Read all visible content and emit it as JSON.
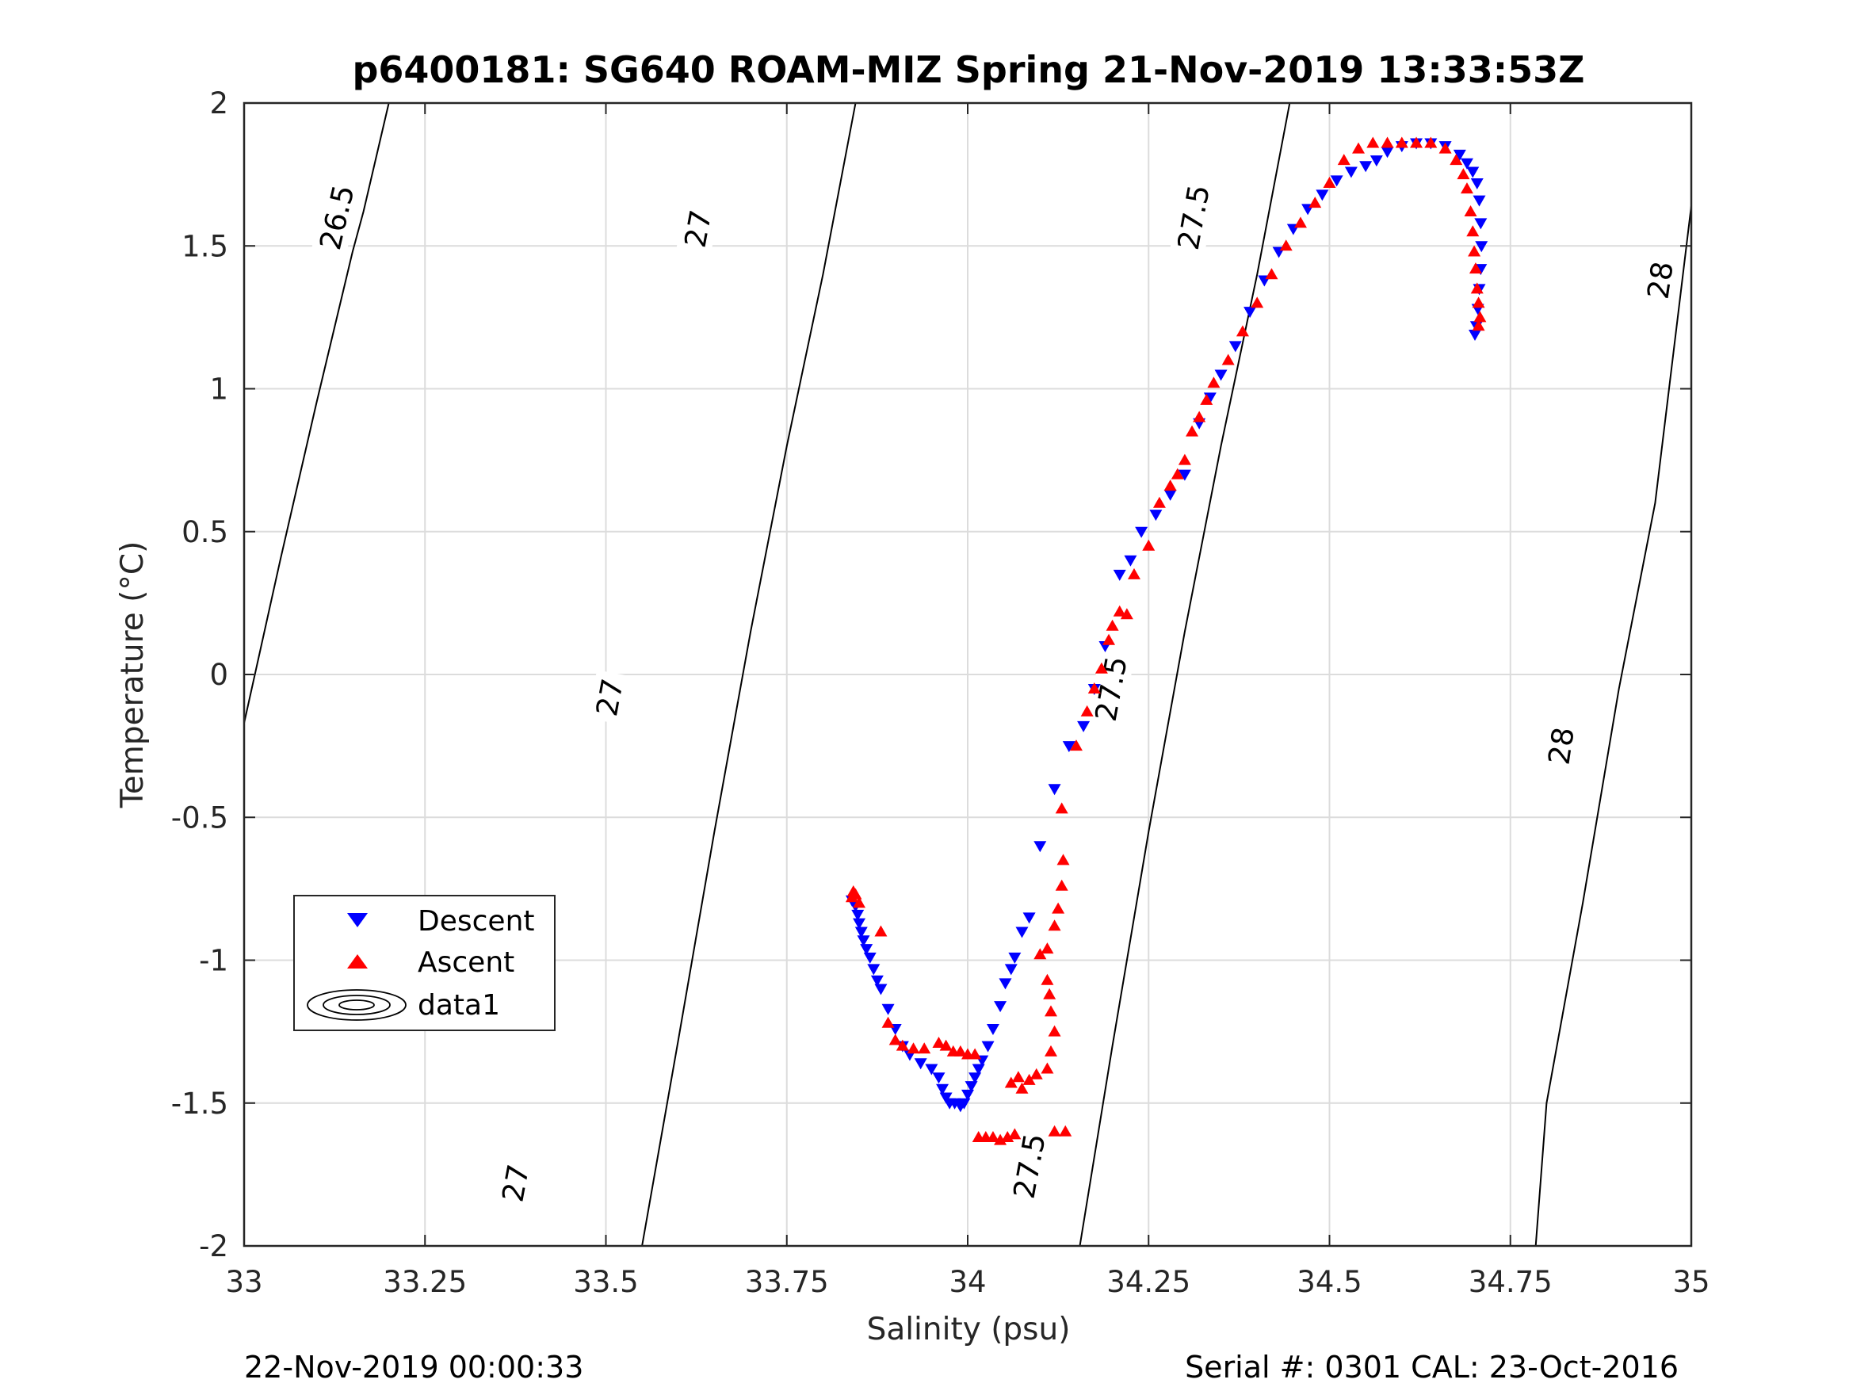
{
  "chart_data": {
    "type": "scatter",
    "title": "p6400181: SG640 ROAM-MIZ Spring 21-Nov-2019 13:33:53Z",
    "xlabel": "Salinity (psu)",
    "ylabel": "Temperature (°C)",
    "xlim": [
      33,
      35
    ],
    "ylim": [
      -2,
      2
    ],
    "xticks": [
      33,
      33.25,
      33.5,
      33.75,
      34,
      34.25,
      34.5,
      34.75,
      35
    ],
    "xtick_labels": [
      "33",
      "33.25",
      "33.5",
      "33.75",
      "34",
      "34.25",
      "34.5",
      "34.75",
      "35"
    ],
    "yticks": [
      2,
      1.5,
      1,
      0.5,
      0,
      -0.5,
      -1,
      -1.5,
      -2
    ],
    "ytick_labels": [
      "2",
      "1.5",
      "1",
      "0.5",
      "0",
      "-0.5",
      "-1",
      "-1.5",
      "-2"
    ],
    "grid": true,
    "legend_position": "bottom-left",
    "legend": [
      "Descent",
      "Ascent",
      "data1"
    ],
    "footer_left": "22-Nov-2019 00:00:33",
    "footer_right": "Serial #: 0301  CAL: 23-Oct-2016",
    "contours": [
      {
        "level": "26.5",
        "points": [
          [
            33.0,
            -0.17
          ],
          [
            33.05,
            0.4
          ],
          [
            33.1,
            0.95
          ],
          [
            33.15,
            1.48
          ],
          [
            33.165,
            1.62
          ],
          [
            33.2,
            2.0
          ]
        ],
        "labels": [
          {
            "x": 33.128,
            "y": 1.6,
            "text": "26.5"
          }
        ]
      },
      {
        "level": "27",
        "points": [
          [
            33.55,
            -2.0
          ],
          [
            33.6,
            -1.28
          ],
          [
            33.65,
            -0.55
          ],
          [
            33.7,
            0.15
          ],
          [
            33.75,
            0.8
          ],
          [
            33.8,
            1.4
          ],
          [
            33.845,
            2.0
          ]
        ],
        "labels": [
          {
            "x": 33.627,
            "y": 1.56,
            "text": "27"
          },
          {
            "x": 33.505,
            "y": -0.08,
            "text": "27"
          },
          {
            "x": 33.375,
            "y": -1.78,
            "text": "27"
          }
        ]
      },
      {
        "level": "27.5",
        "points": [
          [
            34.155,
            -2.0
          ],
          [
            34.2,
            -1.3
          ],
          [
            34.25,
            -0.55
          ],
          [
            34.3,
            0.15
          ],
          [
            34.35,
            0.8
          ],
          [
            34.4,
            1.4
          ],
          [
            34.445,
            2.0
          ]
        ],
        "labels": [
          {
            "x": 34.312,
            "y": 1.6,
            "text": "27.5"
          },
          {
            "x": 34.198,
            "y": -0.05,
            "text": "27.5"
          },
          {
            "x": 34.085,
            "y": -1.72,
            "text": "27.5"
          }
        ]
      },
      {
        "level": "28",
        "points": [
          [
            34.785,
            -2.0
          ],
          [
            34.8,
            -1.5
          ],
          [
            34.85,
            -0.8
          ],
          [
            34.9,
            -0.05
          ],
          [
            34.95,
            0.6
          ],
          [
            35.0,
            1.64
          ]
        ],
        "labels": [
          {
            "x": 34.957,
            "y": 1.38,
            "text": "28"
          },
          {
            "x": 34.82,
            "y": -0.25,
            "text": "28"
          }
        ]
      }
    ],
    "series": [
      {
        "name": "Descent",
        "marker": "triangle-down",
        "color": "#0000ff",
        "points": [
          [
            33.84,
            -0.79
          ],
          [
            33.845,
            -0.81
          ],
          [
            33.848,
            -0.84
          ],
          [
            33.85,
            -0.87
          ],
          [
            33.853,
            -0.9
          ],
          [
            33.856,
            -0.93
          ],
          [
            33.86,
            -0.96
          ],
          [
            33.865,
            -0.99
          ],
          [
            33.87,
            -1.03
          ],
          [
            33.875,
            -1.07
          ],
          [
            33.88,
            -1.1
          ],
          [
            33.89,
            -1.17
          ],
          [
            33.9,
            -1.24
          ],
          [
            33.91,
            -1.3
          ],
          [
            33.92,
            -1.33
          ],
          [
            33.935,
            -1.36
          ],
          [
            33.95,
            -1.38
          ],
          [
            33.96,
            -1.41
          ],
          [
            33.965,
            -1.45
          ],
          [
            33.97,
            -1.48
          ],
          [
            33.975,
            -1.5
          ],
          [
            33.982,
            -1.5
          ],
          [
            33.99,
            -1.51
          ],
          [
            33.995,
            -1.5
          ],
          [
            34.0,
            -1.47
          ],
          [
            34.005,
            -1.44
          ],
          [
            34.01,
            -1.41
          ],
          [
            34.015,
            -1.38
          ],
          [
            34.02,
            -1.35
          ],
          [
            34.028,
            -1.3
          ],
          [
            34.035,
            -1.24
          ],
          [
            34.045,
            -1.16
          ],
          [
            34.052,
            -1.08
          ],
          [
            34.06,
            -1.03
          ],
          [
            34.065,
            -0.99
          ],
          [
            34.075,
            -0.9
          ],
          [
            34.085,
            -0.85
          ],
          [
            34.1,
            -0.6
          ],
          [
            34.12,
            -0.4
          ],
          [
            34.14,
            -0.25
          ],
          [
            34.16,
            -0.18
          ],
          [
            34.175,
            -0.05
          ],
          [
            34.19,
            0.1
          ],
          [
            34.21,
            0.35
          ],
          [
            34.225,
            0.4
          ],
          [
            34.24,
            0.5
          ],
          [
            34.26,
            0.56
          ],
          [
            34.28,
            0.63
          ],
          [
            34.3,
            0.7
          ],
          [
            34.32,
            0.88
          ],
          [
            34.335,
            0.97
          ],
          [
            34.35,
            1.05
          ],
          [
            34.37,
            1.15
          ],
          [
            34.39,
            1.27
          ],
          [
            34.41,
            1.38
          ],
          [
            34.43,
            1.48
          ],
          [
            34.45,
            1.56
          ],
          [
            34.47,
            1.63
          ],
          [
            34.49,
            1.68
          ],
          [
            34.51,
            1.73
          ],
          [
            34.53,
            1.76
          ],
          [
            34.55,
            1.78
          ],
          [
            34.565,
            1.8
          ],
          [
            34.58,
            1.83
          ],
          [
            34.6,
            1.85
          ],
          [
            34.62,
            1.86
          ],
          [
            34.64,
            1.86
          ],
          [
            34.66,
            1.85
          ],
          [
            34.68,
            1.82
          ],
          [
            34.69,
            1.79
          ],
          [
            34.698,
            1.76
          ],
          [
            34.704,
            1.72
          ],
          [
            34.707,
            1.66
          ],
          [
            34.709,
            1.58
          ],
          [
            34.71,
            1.5
          ],
          [
            34.709,
            1.42
          ],
          [
            34.707,
            1.35
          ],
          [
            34.705,
            1.28
          ],
          [
            34.703,
            1.22
          ],
          [
            34.701,
            1.19
          ]
        ]
      },
      {
        "name": "Ascent",
        "marker": "triangle-up",
        "color": "#ff0000",
        "points": [
          [
            33.84,
            -0.78
          ],
          [
            33.842,
            -0.76
          ],
          [
            33.845,
            -0.77
          ],
          [
            33.85,
            -0.8
          ],
          [
            33.88,
            -0.9
          ],
          [
            33.89,
            -1.22
          ],
          [
            33.9,
            -1.28
          ],
          [
            33.91,
            -1.3
          ],
          [
            33.925,
            -1.31
          ],
          [
            33.94,
            -1.31
          ],
          [
            33.96,
            -1.29
          ],
          [
            33.97,
            -1.3
          ],
          [
            33.98,
            -1.32
          ],
          [
            33.99,
            -1.32
          ],
          [
            34.0,
            -1.33
          ],
          [
            34.01,
            -1.33
          ],
          [
            34.015,
            -1.62
          ],
          [
            34.025,
            -1.62
          ],
          [
            34.035,
            -1.62
          ],
          [
            34.045,
            -1.63
          ],
          [
            34.055,
            -1.62
          ],
          [
            34.065,
            -1.61
          ],
          [
            34.12,
            -1.6
          ],
          [
            34.135,
            -1.6
          ],
          [
            34.06,
            -1.43
          ],
          [
            34.07,
            -1.41
          ],
          [
            34.075,
            -1.45
          ],
          [
            34.085,
            -1.42
          ],
          [
            34.095,
            -1.4
          ],
          [
            34.11,
            -1.38
          ],
          [
            34.115,
            -1.32
          ],
          [
            34.12,
            -1.25
          ],
          [
            34.115,
            -1.18
          ],
          [
            34.113,
            -1.12
          ],
          [
            34.11,
            -1.07
          ],
          [
            34.1,
            -0.98
          ],
          [
            34.11,
            -0.96
          ],
          [
            34.12,
            -0.88
          ],
          [
            34.125,
            -0.82
          ],
          [
            34.13,
            -0.74
          ],
          [
            34.132,
            -0.65
          ],
          [
            34.13,
            -0.47
          ],
          [
            34.15,
            -0.25
          ],
          [
            34.165,
            -0.13
          ],
          [
            34.175,
            -0.05
          ],
          [
            34.185,
            0.02
          ],
          [
            34.195,
            0.12
          ],
          [
            34.2,
            0.17
          ],
          [
            34.21,
            0.22
          ],
          [
            34.22,
            0.21
          ],
          [
            34.23,
            0.35
          ],
          [
            34.25,
            0.45
          ],
          [
            34.265,
            0.6
          ],
          [
            34.28,
            0.66
          ],
          [
            34.29,
            0.7
          ],
          [
            34.3,
            0.75
          ],
          [
            34.31,
            0.85
          ],
          [
            34.32,
            0.9
          ],
          [
            34.33,
            0.96
          ],
          [
            34.34,
            1.02
          ],
          [
            34.36,
            1.1
          ],
          [
            34.38,
            1.2
          ],
          [
            34.4,
            1.3
          ],
          [
            34.42,
            1.4
          ],
          [
            34.44,
            1.5
          ],
          [
            34.46,
            1.58
          ],
          [
            34.48,
            1.65
          ],
          [
            34.5,
            1.72
          ],
          [
            34.52,
            1.8
          ],
          [
            34.54,
            1.84
          ],
          [
            34.56,
            1.86
          ],
          [
            34.58,
            1.86
          ],
          [
            34.6,
            1.86
          ],
          [
            34.62,
            1.86
          ],
          [
            34.64,
            1.86
          ],
          [
            34.66,
            1.84
          ],
          [
            34.675,
            1.8
          ],
          [
            34.685,
            1.75
          ],
          [
            34.69,
            1.7
          ],
          [
            34.695,
            1.62
          ],
          [
            34.698,
            1.55
          ],
          [
            34.7,
            1.48
          ],
          [
            34.702,
            1.42
          ],
          [
            34.704,
            1.35
          ],
          [
            34.706,
            1.3
          ],
          [
            34.708,
            1.25
          ],
          [
            34.706,
            1.22
          ]
        ]
      }
    ]
  }
}
